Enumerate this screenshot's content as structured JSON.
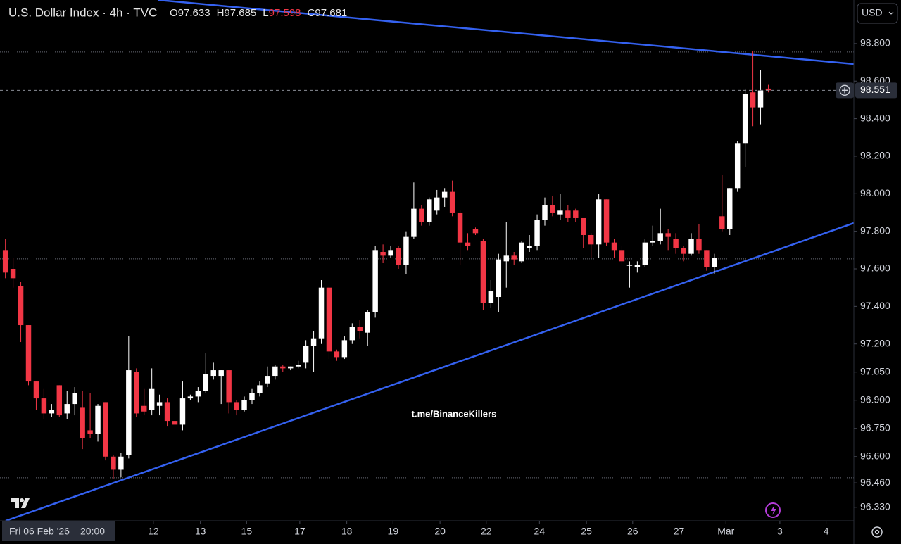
{
  "chart_data": {
    "type": "candlestick",
    "title": "U.S. Dollar Index · 4h · TVC",
    "ohlc_legend": [
      {
        "label": "O",
        "value": 97.633
      },
      {
        "label": "H",
        "value": 97.685
      },
      {
        "label": "L",
        "value": 97.598
      },
      {
        "label": "C",
        "value": 97.681
      }
    ],
    "currency": "USD",
    "watermark": "t.me/BinanceKillers",
    "crosshair_date": "Fri 06 Feb '26",
    "crosshair_time": "20:00",
    "up_color": "#ffffff",
    "down_color": "#f23645",
    "trendline_color": "#3461f0",
    "open": [
      97.7,
      97.6,
      97.51,
      97.3,
      97.0,
      96.91,
      96.83,
      96.98,
      96.83,
      96.88,
      96.86,
      96.74,
      96.72,
      96.89,
      96.6,
      96.53,
      96.61,
      97.05,
      96.87,
      96.85,
      96.87,
      96.89,
      96.79,
      96.77,
      96.91,
      96.92,
      96.95,
      97.03,
      97.03,
      97.06,
      96.89,
      96.85,
      96.9,
      96.94,
      96.99,
      97.03,
      97.08,
      97.07,
      97.08,
      97.1,
      97.19,
      97.23,
      97.5,
      97.16,
      97.13,
      97.22,
      97.29,
      97.26,
      97.37,
      97.69,
      97.67,
      97.71,
      97.62,
      97.77,
      97.92,
      97.85,
      97.91,
      97.98,
      98.01,
      97.9,
      97.74,
      97.81,
      97.75,
      97.42,
      97.45,
      97.64,
      97.67,
      97.64,
      97.71,
      97.72,
      97.86,
      97.94,
      97.89,
      97.91,
      97.91,
      97.87,
      97.78,
      97.73,
      97.97,
      97.74,
      97.7,
      97.62,
      97.61,
      97.62,
      97.74,
      97.75,
      97.79,
      97.76,
      97.71,
      97.68,
      97.76,
      97.7,
      97.61,
      97.88,
      97.81,
      98.03,
      98.27,
      98.54,
      98.46,
      98.56
    ],
    "high": [
      97.76,
      97.66,
      97.53,
      97.3,
      97.0,
      96.96,
      96.88,
      96.98,
      96.95,
      96.97,
      96.95,
      96.94,
      96.88,
      96.89,
      96.61,
      96.62,
      97.24,
      97.07,
      96.96,
      97.07,
      96.93,
      96.91,
      96.98,
      97.0,
      96.93,
      96.97,
      97.15,
      97.1,
      97.06,
      97.06,
      96.9,
      96.92,
      96.96,
      97.0,
      97.08,
      97.09,
      97.09,
      97.08,
      97.11,
      97.22,
      97.27,
      97.54,
      97.51,
      97.17,
      97.24,
      97.31,
      97.33,
      97.38,
      97.72,
      97.73,
      97.72,
      97.72,
      97.8,
      98.06,
      97.94,
      97.98,
      98.02,
      98.03,
      98.07,
      97.91,
      97.79,
      97.82,
      97.76,
      97.54,
      97.68,
      97.85,
      97.69,
      97.75,
      97.78,
      97.89,
      97.98,
      97.99,
      98.0,
      97.94,
      97.92,
      97.87,
      97.79,
      98.0,
      97.97,
      97.76,
      97.72,
      97.64,
      97.64,
      97.76,
      97.83,
      97.92,
      97.81,
      97.79,
      97.72,
      97.79,
      97.84,
      97.7,
      97.68,
      98.1,
      98.03,
      98.28,
      98.56,
      98.76,
      98.66,
      98.58
    ],
    "low": [
      97.55,
      97.5,
      97.21,
      96.98,
      96.85,
      96.8,
      96.81,
      96.81,
      96.8,
      96.82,
      96.64,
      96.7,
      96.68,
      96.58,
      96.48,
      96.49,
      96.59,
      96.81,
      96.82,
      96.82,
      96.82,
      96.76,
      96.75,
      96.74,
      96.9,
      96.89,
      96.94,
      97.01,
      96.88,
      96.83,
      96.82,
      96.84,
      96.88,
      96.92,
      96.97,
      97.01,
      97.05,
      97.06,
      97.07,
      97.07,
      97.05,
      97.2,
      97.12,
      97.11,
      97.12,
      97.2,
      97.23,
      97.19,
      97.34,
      97.63,
      97.66,
      97.6,
      97.57,
      97.76,
      97.83,
      97.83,
      97.89,
      97.93,
      97.88,
      97.62,
      97.7,
      97.78,
      97.38,
      97.39,
      97.37,
      97.5,
      97.62,
      97.63,
      97.69,
      97.7,
      97.83,
      97.88,
      97.86,
      97.85,
      97.85,
      97.71,
      97.66,
      97.66,
      97.72,
      97.66,
      97.62,
      97.5,
      97.58,
      97.61,
      97.72,
      97.73,
      97.7,
      97.68,
      97.64,
      97.67,
      97.68,
      97.59,
      97.57,
      97.8,
      97.78,
      98.01,
      98.14,
      98.36,
      98.37,
      98.54
    ],
    "close": [
      97.58,
      97.55,
      97.3,
      97.0,
      96.91,
      96.83,
      96.85,
      96.82,
      96.88,
      96.94,
      96.7,
      96.72,
      96.87,
      96.6,
      96.53,
      96.6,
      97.06,
      96.83,
      96.84,
      96.96,
      96.89,
      96.79,
      96.77,
      96.91,
      96.92,
      96.95,
      97.04,
      97.06,
      97.06,
      96.89,
      96.85,
      96.9,
      96.94,
      96.98,
      97.03,
      97.08,
      97.07,
      97.08,
      97.09,
      97.19,
      97.23,
      97.5,
      97.16,
      97.13,
      97.22,
      97.29,
      97.27,
      97.37,
      97.7,
      97.67,
      97.7,
      97.62,
      97.77,
      97.92,
      97.85,
      97.97,
      97.98,
      98.01,
      97.9,
      97.74,
      97.72,
      97.79,
      97.42,
      97.48,
      97.65,
      97.67,
      97.65,
      97.74,
      97.72,
      97.86,
      97.94,
      97.9,
      97.91,
      97.87,
      97.87,
      97.78,
      97.73,
      97.97,
      97.74,
      97.7,
      97.64,
      97.62,
      97.62,
      97.74,
      97.75,
      97.79,
      97.77,
      97.71,
      97.68,
      97.76,
      97.7,
      97.61,
      97.66,
      97.81,
      98.03,
      98.27,
      98.53,
      98.46,
      98.55,
      98.551
    ],
    "xlim": [
      -0.7,
      110.1
    ],
    "xticks": [
      {
        "value": 19.2,
        "label": "12"
      },
      {
        "value": 25.3,
        "label": "13"
      },
      {
        "value": 31.3,
        "label": "15"
      },
      {
        "value": 38.2,
        "label": "17"
      },
      {
        "value": 44.3,
        "label": "18"
      },
      {
        "value": 50.3,
        "label": "19"
      },
      {
        "value": 56.4,
        "label": "20"
      },
      {
        "value": 62.4,
        "label": "22"
      },
      {
        "value": 69.3,
        "label": "24"
      },
      {
        "value": 75.4,
        "label": "25"
      },
      {
        "value": 81.4,
        "label": "26"
      },
      {
        "value": 87.4,
        "label": "27"
      },
      {
        "value": 93.5,
        "label": "Mar"
      },
      {
        "value": 100.5,
        "label": "3"
      },
      {
        "value": 106.5,
        "label": "4"
      }
    ],
    "ylim": [
      96.258,
      99.032
    ],
    "yticks": [
      {
        "value": 98.8,
        "label": "98.800"
      },
      {
        "value": 98.6,
        "label": "98.600"
      },
      {
        "value": 98.4,
        "label": "98.400"
      },
      {
        "value": 98.2,
        "label": "98.200"
      },
      {
        "value": 98.0,
        "label": "98.000"
      },
      {
        "value": 97.8,
        "label": "97.800"
      },
      {
        "value": 97.6,
        "label": "97.600"
      },
      {
        "value": 97.4,
        "label": "97.400"
      },
      {
        "value": 97.2,
        "label": "97.200"
      },
      {
        "value": 97.05,
        "label": "97.050"
      },
      {
        "value": 96.9,
        "label": "96.900"
      },
      {
        "value": 96.75,
        "label": "96.750"
      },
      {
        "value": 96.6,
        "label": "96.600"
      },
      {
        "value": 96.46,
        "label": "96.460"
      },
      {
        "value": 96.33,
        "label": "96.330"
      }
    ],
    "levels": [
      98.755,
      97.653,
      96.487
    ],
    "trendlines": [
      {
        "x": [
          19.85,
          110.1
        ],
        "y": [
          99.032,
          98.691
        ]
      },
      {
        "x": [
          0.03,
          110.1
        ],
        "y": [
          96.258,
          97.844
        ]
      }
    ]
  }
}
